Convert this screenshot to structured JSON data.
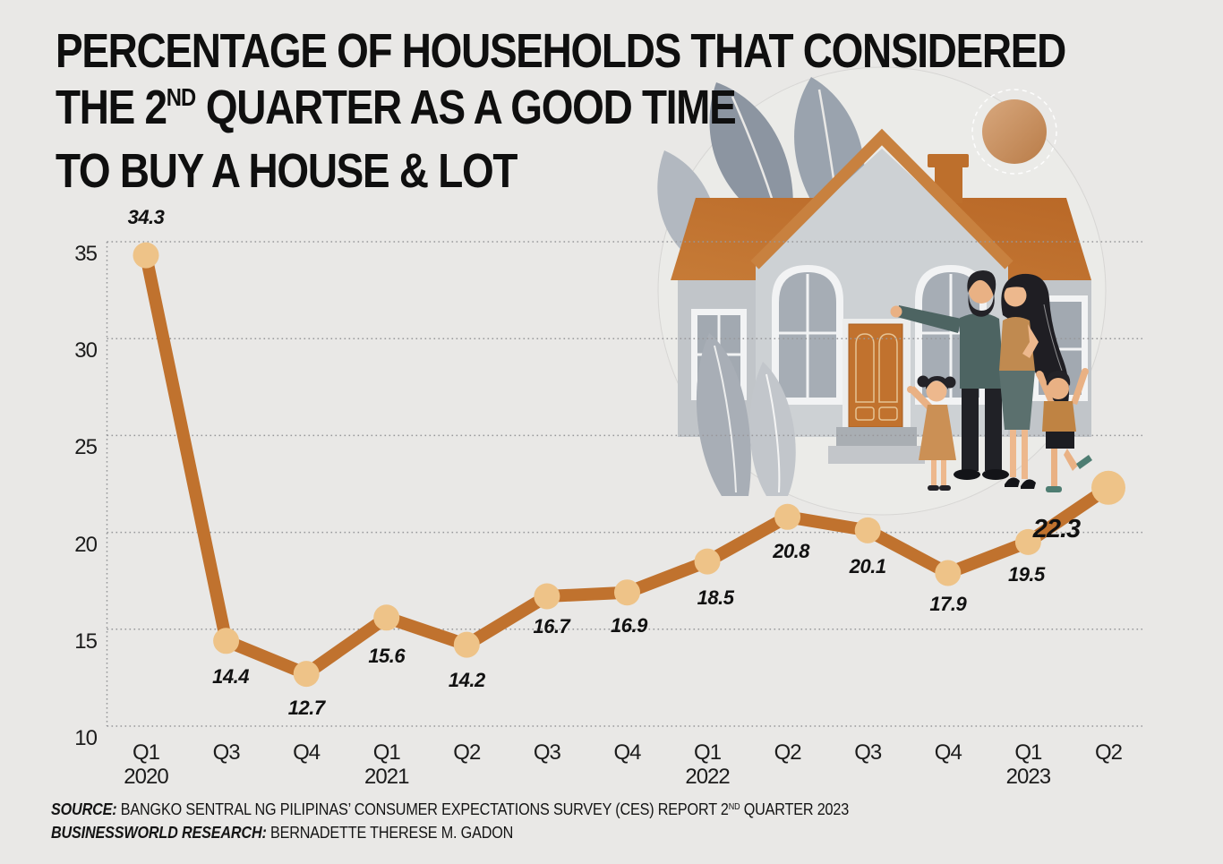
{
  "title": {
    "line1": "PERCENTAGE OF HOUSEHOLDS THAT CONSIDERED",
    "line2_prefix": "THE 2",
    "line2_sup": "ND",
    "line2_rest": " QUARTER AS A GOOD TIME",
    "line3": "TO BUY A HOUSE & LOT"
  },
  "footer": {
    "source_label": "SOURCE:",
    "source_text": " BANGKO SENTRAL NG PILIPINAS’ CONSUMER EXPECTATIONS SURVEY (CES) REPORT 2",
    "source_sup": "ND",
    "source_suffix": " QUARTER 2023",
    "research_label": "BUSINESSWORLD RESEARCH:",
    "research_text": " BERNADETTE THERESE M. GADON"
  },
  "chart_data": {
    "type": "line",
    "title": "PERCENTAGE OF HOUSEHOLDS THAT CONSIDERED THE 2ND QUARTER AS A GOOD TIME TO BUY A HOUSE & LOT",
    "x": [
      {
        "quarter": "Q1",
        "year": "2020"
      },
      {
        "quarter": "Q3",
        "year": ""
      },
      {
        "quarter": "Q4",
        "year": ""
      },
      {
        "quarter": "Q1",
        "year": "2021"
      },
      {
        "quarter": "Q2",
        "year": ""
      },
      {
        "quarter": "Q3",
        "year": ""
      },
      {
        "quarter": "Q4",
        "year": ""
      },
      {
        "quarter": "Q1",
        "year": "2022"
      },
      {
        "quarter": "Q2",
        "year": ""
      },
      {
        "quarter": "Q3",
        "year": ""
      },
      {
        "quarter": "Q4",
        "year": ""
      },
      {
        "quarter": "Q1",
        "year": "2023"
      },
      {
        "quarter": "Q2",
        "year": ""
      }
    ],
    "values": [
      34.3,
      14.4,
      12.7,
      15.6,
      14.2,
      16.7,
      16.9,
      18.5,
      20.8,
      20.1,
      17.9,
      19.5,
      22.3
    ],
    "point_labels": [
      "34.3",
      "14.4",
      "12.7",
      "15.6",
      "14.2",
      "16.7",
      "16.9",
      "18.5",
      "20.8",
      "20.1",
      "17.9",
      "19.5",
      "22.3"
    ],
    "highlighted_label": "22.3",
    "ylim": [
      10,
      35
    ],
    "yticks": [
      35,
      30,
      25,
      20,
      15,
      10
    ],
    "xlabel": "",
    "ylabel": "",
    "grid": "horizontal-dotted",
    "legend": "none",
    "line_color": "#c0722e",
    "marker_color": "#eec388",
    "grid_color": "#97979a",
    "label_color": "#111111"
  },
  "illustration": {
    "description": "family of four in front of a house with orange roof, gray leaves and sun",
    "roof_color": "#bc6b29",
    "wall_color": "#cdd1d4",
    "accent_color": "#c1722e"
  }
}
